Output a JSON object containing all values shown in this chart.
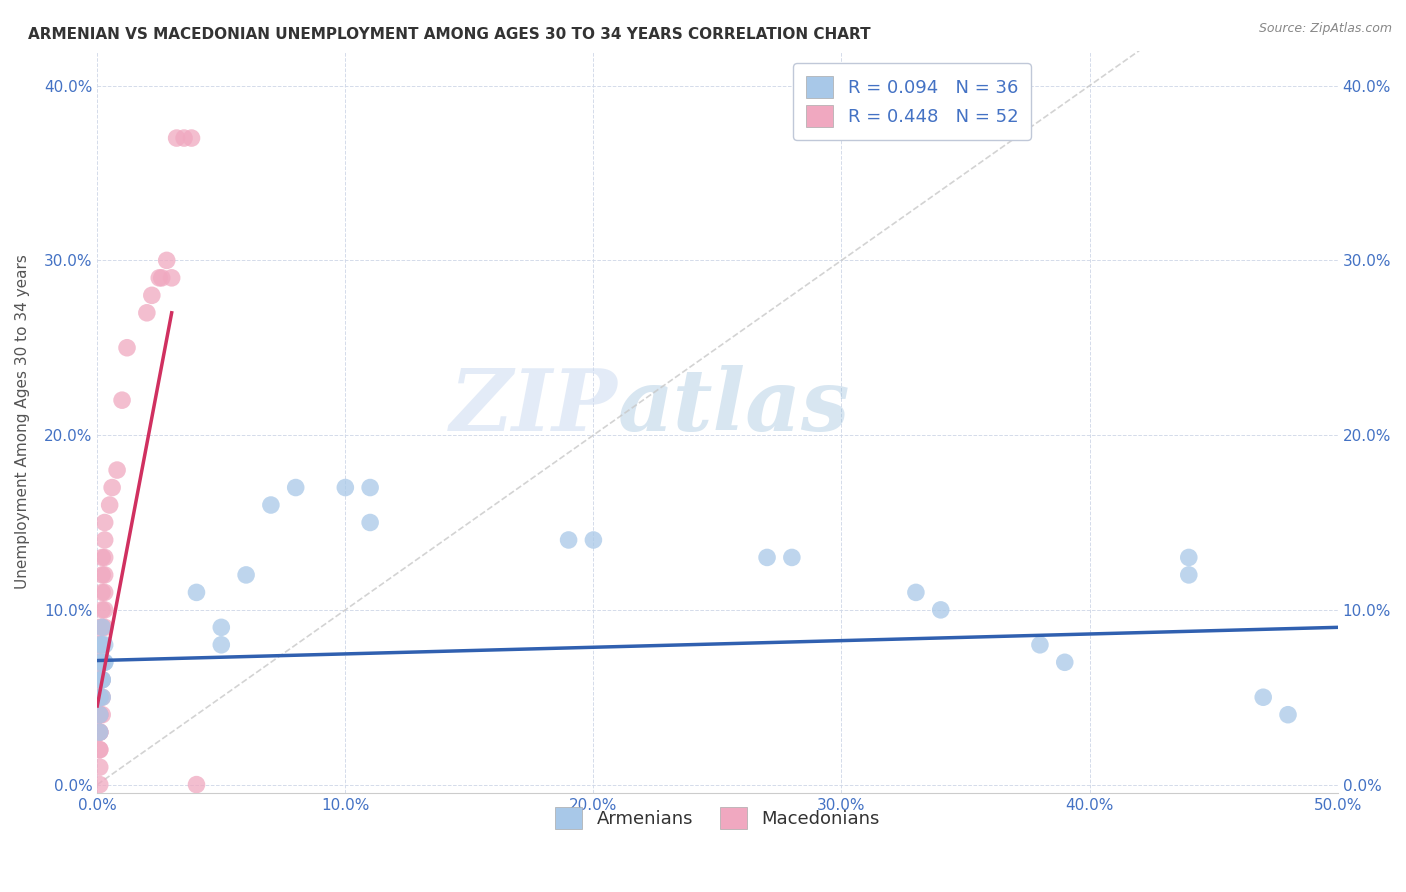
{
  "title": "ARMENIAN VS MACEDONIAN UNEMPLOYMENT AMONG AGES 30 TO 34 YEARS CORRELATION CHART",
  "source": "Source: ZipAtlas.com",
  "ylabel": "Unemployment Among Ages 30 to 34 years",
  "xlim": [
    0,
    0.5
  ],
  "ylim": [
    -0.005,
    0.42
  ],
  "xticks": [
    0.0,
    0.1,
    0.2,
    0.3,
    0.4,
    0.5
  ],
  "yticks": [
    0.0,
    0.1,
    0.2,
    0.3,
    0.4
  ],
  "armenian_color": "#a8c8e8",
  "macedonian_color": "#f0a8c0",
  "armenian_line_color": "#3060b0",
  "macedonian_line_color": "#d03060",
  "diagonal_color": "#c8c8c8",
  "r_armenian": 0.094,
  "n_armenian": 36,
  "r_macedonian": 0.448,
  "n_macedonian": 52,
  "armenian_x": [
    0.001,
    0.002,
    0.001,
    0.003,
    0.002,
    0.001,
    0.002,
    0.003,
    0.001,
    0.002,
    0.001,
    0.002,
    0.003,
    0.001,
    0.002,
    0.04,
    0.05,
    0.05,
    0.06,
    0.07,
    0.08,
    0.1,
    0.11,
    0.11,
    0.19,
    0.2,
    0.27,
    0.28,
    0.33,
    0.34,
    0.38,
    0.39,
    0.44,
    0.44,
    0.47,
    0.48
  ],
  "armenian_y": [
    0.07,
    0.08,
    0.06,
    0.07,
    0.05,
    0.04,
    0.06,
    0.08,
    0.03,
    0.07,
    0.05,
    0.06,
    0.07,
    0.08,
    0.09,
    0.11,
    0.09,
    0.08,
    0.12,
    0.16,
    0.17,
    0.17,
    0.17,
    0.15,
    0.14,
    0.14,
    0.13,
    0.13,
    0.11,
    0.1,
    0.08,
    0.07,
    0.13,
    0.12,
    0.05,
    0.04
  ],
  "macedonian_x": [
    0.001,
    0.001,
    0.001,
    0.001,
    0.001,
    0.001,
    0.001,
    0.001,
    0.001,
    0.001,
    0.001,
    0.001,
    0.001,
    0.001,
    0.001,
    0.001,
    0.001,
    0.001,
    0.001,
    0.001,
    0.002,
    0.002,
    0.002,
    0.002,
    0.002,
    0.002,
    0.002,
    0.002,
    0.002,
    0.002,
    0.003,
    0.003,
    0.003,
    0.003,
    0.003,
    0.003,
    0.003,
    0.005,
    0.006,
    0.008,
    0.01,
    0.012,
    0.02,
    0.022,
    0.025,
    0.026,
    0.028,
    0.03,
    0.032,
    0.035,
    0.038,
    0.04
  ],
  "macedonian_y": [
    0.01,
    0.02,
    0.03,
    0.04,
    0.05,
    0.06,
    0.07,
    0.08,
    0.09,
    0.0,
    0.03,
    0.04,
    0.05,
    0.06,
    0.07,
    0.08,
    0.02,
    0.03,
    0.04,
    0.05,
    0.04,
    0.05,
    0.06,
    0.07,
    0.08,
    0.09,
    0.1,
    0.11,
    0.12,
    0.13,
    0.09,
    0.1,
    0.11,
    0.12,
    0.13,
    0.14,
    0.15,
    0.16,
    0.17,
    0.18,
    0.22,
    0.25,
    0.27,
    0.28,
    0.29,
    0.29,
    0.3,
    0.29,
    0.37,
    0.37,
    0.37,
    0.0
  ],
  "arm_trend_x0": 0.0,
  "arm_trend_y0": 0.071,
  "arm_trend_x1": 0.5,
  "arm_trend_y1": 0.09,
  "mac_trend_x0": 0.0,
  "mac_trend_y0": 0.045,
  "mac_trend_x1": 0.03,
  "mac_trend_y1": 0.27,
  "watermark_zip": "ZIP",
  "watermark_atlas": "atlas",
  "title_fontsize": 11,
  "label_fontsize": 11,
  "tick_fontsize": 11,
  "legend_fontsize": 13,
  "source_fontsize": 9
}
